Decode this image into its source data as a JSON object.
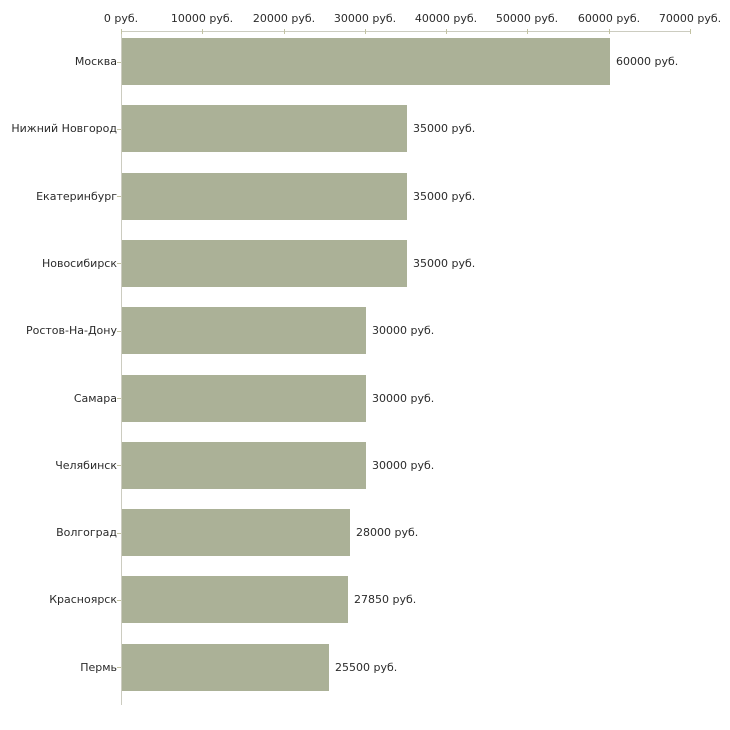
{
  "chart_data": {
    "type": "bar",
    "orientation": "horizontal",
    "title": "",
    "xlabel": "",
    "ylabel": "",
    "unit": "руб.",
    "xlim": [
      0,
      70000
    ],
    "x_ticks": [
      0,
      10000,
      20000,
      30000,
      40000,
      50000,
      60000,
      70000
    ],
    "x_tick_labels": [
      "0 руб.",
      "10000 руб.",
      "20000 руб.",
      "30000 руб.",
      "40000 руб.",
      "50000 руб.",
      "60000 руб.",
      "70000 руб."
    ],
    "categories": [
      "Москва",
      "Нижний Новгород",
      "Екатеринбург",
      "Новосибирск",
      "Ростов-На-Дону",
      "Самара",
      "Челябинск",
      "Волгоград",
      "Красноярск",
      "Пермь"
    ],
    "values": [
      60000,
      35000,
      35000,
      35000,
      30000,
      30000,
      30000,
      28000,
      27850,
      25500
    ],
    "value_labels": [
      "60000 руб.",
      "35000 руб.",
      "35000 руб.",
      "35000 руб.",
      "30000 руб.",
      "30000 руб.",
      "30000 руб.",
      "28000 руб.",
      "27850 руб.",
      "25500 руб."
    ],
    "grid": false,
    "tick_labels_position": "top",
    "colors": {
      "bar": "#abb197",
      "axis": "#ccccc0",
      "tick": "#c2c2a2",
      "text": "#2b2b2b",
      "background": "#ffffff"
    }
  }
}
